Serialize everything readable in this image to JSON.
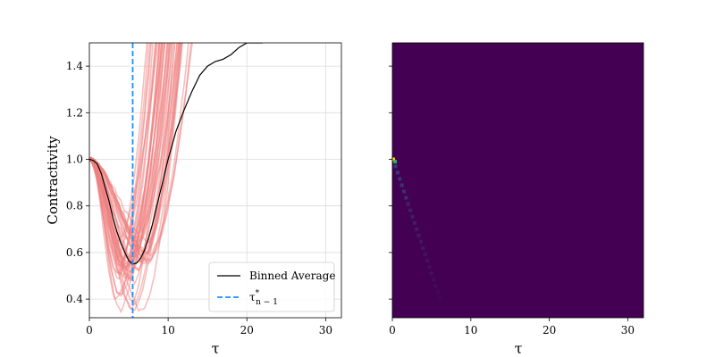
{
  "chart_data": [
    {
      "type": "line",
      "xlabel": "τ",
      "ylabel": "Contractivity",
      "xlim": [
        0,
        32
      ],
      "ylim": [
        0.32,
        1.5
      ],
      "xticks": [
        0,
        10,
        20,
        30
      ],
      "yticks": [
        0.4,
        0.6,
        0.8,
        1.0,
        1.2,
        1.4
      ],
      "xtick_labels": [
        "0",
        "10",
        "20",
        "30"
      ],
      "ytick_labels": [
        "0.4",
        "0.6",
        "0.8",
        "1.0",
        "1.2",
        "1.4"
      ],
      "grid": true,
      "legend_position": "lower-right",
      "legend": [
        {
          "label": "Binned Average",
          "style": "solid",
          "color": "#000000"
        },
        {
          "label": "τ*n − 1",
          "style": "dashed",
          "color": "#1e90ff"
        }
      ],
      "series": [
        {
          "name": "Binned Average",
          "color": "#000000",
          "x": [
            0,
            0.5,
            1,
            1.5,
            2,
            2.5,
            3,
            3.5,
            4,
            4.5,
            5,
            5.5,
            6,
            6.5,
            7,
            7.5,
            8,
            8.5,
            9,
            9.5,
            10,
            11,
            12,
            13,
            14,
            15,
            16,
            17,
            18,
            19,
            20,
            21,
            22
          ],
          "y": [
            1.0,
            0.995,
            0.98,
            0.94,
            0.88,
            0.82,
            0.75,
            0.69,
            0.64,
            0.6,
            0.565,
            0.55,
            0.555,
            0.575,
            0.61,
            0.66,
            0.72,
            0.79,
            0.86,
            0.93,
            1.0,
            1.12,
            1.21,
            1.29,
            1.36,
            1.4,
            1.42,
            1.43,
            1.45,
            1.48,
            1.5,
            1.5,
            1.5
          ]
        }
      ],
      "bundle": {
        "color": "#f08080",
        "count": 45
      },
      "vline": {
        "x": 5.5,
        "color": "#1e90ff",
        "label": "τ*n − 1"
      }
    },
    {
      "type": "heatmap",
      "xlabel": "τ",
      "xlim": [
        0,
        32
      ],
      "ylim": [
        0.32,
        1.5
      ],
      "xticks": [
        0,
        10,
        20,
        30
      ],
      "xtick_labels": [
        "0",
        "10",
        "20",
        "30"
      ],
      "background_color": "#440154",
      "colormap": "viridis"
    }
  ]
}
